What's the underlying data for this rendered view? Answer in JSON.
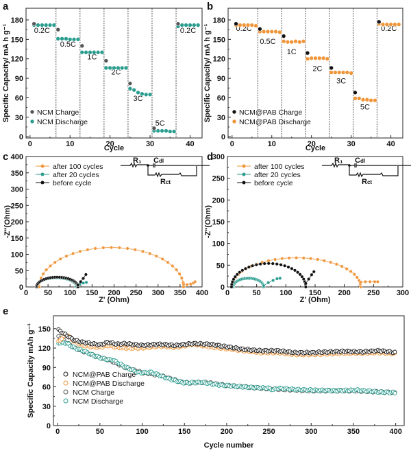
{
  "colors": {
    "charge": "#555555",
    "ncm_discharge": "#2a9d8f",
    "pab_discharge": "#f0963a",
    "pab_charge": "#111111",
    "before": "#111111"
  },
  "chart_data": [
    {
      "id": "a",
      "type": "scatter",
      "panel_label": "a",
      "xlabel": "Cycle",
      "ylabel": "Specific Capacity/ mA h g⁻¹",
      "xlim": [
        -1,
        43
      ],
      "ylim": [
        -2,
        198
      ],
      "xticks": [
        0,
        10,
        20,
        30,
        40
      ],
      "yticks": [
        0,
        30,
        60,
        90,
        120,
        150,
        180
      ],
      "dividers": [
        6.5,
        12.5,
        18.5,
        24.5,
        30.5,
        36.5
      ],
      "rate_labels": [
        {
          "text": "0.2C",
          "x": 3,
          "y": 160
        },
        {
          "text": "0.5C",
          "x": 9.5,
          "y": 139
        },
        {
          "text": "1C",
          "x": 15.5,
          "y": 119
        },
        {
          "text": "2C",
          "x": 21.5,
          "y": 96
        },
        {
          "text": "3C",
          "x": 27,
          "y": 55
        },
        {
          "text": "5C",
          "x": 32.5,
          "y": 17
        },
        {
          "text": "0.2C",
          "x": 39.5,
          "y": 160
        }
      ],
      "legend": [
        {
          "name": "NCM Charge",
          "color": "#555555"
        },
        {
          "name": "NCM Discharge",
          "color": "#2a9d8f"
        }
      ],
      "series": [
        {
          "name": "NCM Charge",
          "x": [
            1,
            7,
            13,
            19,
            25,
            31,
            37
          ],
          "y": [
            174,
            165,
            140,
            117,
            82,
            13,
            174
          ]
        },
        {
          "name": "NCM Discharge",
          "x": [
            1,
            2,
            3,
            4,
            5,
            6,
            7,
            8,
            9,
            10,
            11,
            12,
            13,
            14,
            15,
            16,
            17,
            18,
            19,
            20,
            21,
            22,
            23,
            24,
            25,
            26,
            27,
            28,
            29,
            30,
            31,
            32,
            33,
            34,
            35,
            36,
            37,
            38,
            39,
            40,
            41,
            42
          ],
          "y": [
            172,
            172,
            172,
            172,
            172,
            172,
            151,
            151,
            151,
            150,
            150,
            150,
            130,
            130,
            130,
            130,
            130,
            130,
            106,
            106,
            106,
            106,
            106,
            106,
            74,
            72,
            68,
            66,
            65,
            65,
            9,
            9,
            9,
            9,
            8,
            8,
            170,
            172,
            172,
            172,
            172,
            172
          ]
        }
      ]
    },
    {
      "id": "b",
      "type": "scatter",
      "panel_label": "b",
      "xlabel": "Cycle",
      "ylabel": "Specific Capacity/ mA h g⁻¹",
      "xlim": [
        -1,
        43
      ],
      "ylim": [
        -2,
        198
      ],
      "xticks": [
        0,
        10,
        20,
        30,
        40
      ],
      "yticks": [
        0,
        30,
        60,
        90,
        120,
        150,
        180
      ],
      "dividers": [
        6.5,
        12.5,
        18.5,
        24.5,
        30.5,
        36.5
      ],
      "rate_labels": [
        {
          "text": "0.2C",
          "x": 3,
          "y": 163
        },
        {
          "text": "0.5C",
          "x": 9,
          "y": 143
        },
        {
          "text": "1C",
          "x": 15,
          "y": 127
        },
        {
          "text": "2C",
          "x": 21.5,
          "y": 101
        },
        {
          "text": "3C",
          "x": 27.5,
          "y": 82
        },
        {
          "text": "5C",
          "x": 33.5,
          "y": 42
        },
        {
          "text": "0.2C",
          "x": 39.5,
          "y": 163
        }
      ],
      "legend": [
        {
          "name": "NCM@PAB Charge",
          "color": "#111111"
        },
        {
          "name": "NCM@PAB Discharge",
          "color": "#f0963a"
        }
      ],
      "series": [
        {
          "name": "NCM@PAB Charge",
          "x": [
            1,
            7,
            13,
            19,
            25,
            31,
            37
          ],
          "y": [
            174,
            166,
            155,
            129,
            106,
            68,
            177
          ]
        },
        {
          "name": "NCM@PAB Discharge",
          "x": [
            1,
            2,
            3,
            4,
            5,
            6,
            7,
            8,
            9,
            10,
            11,
            12,
            13,
            14,
            15,
            16,
            17,
            18,
            19,
            20,
            21,
            22,
            23,
            24,
            25,
            26,
            27,
            28,
            29,
            30,
            31,
            32,
            33,
            34,
            35,
            36,
            37,
            38,
            39,
            40,
            41,
            42
          ],
          "y": [
            172,
            172,
            172,
            172,
            172,
            171,
            162,
            162,
            162,
            162,
            162,
            161,
            147,
            146,
            146,
            147,
            146,
            147,
            120,
            121,
            121,
            121,
            121,
            120,
            99,
            99,
            99,
            99,
            99,
            98,
            59,
            59,
            57,
            57,
            56,
            56,
            174,
            173,
            173,
            173,
            173,
            173
          ]
        }
      ]
    },
    {
      "id": "c",
      "type": "line",
      "panel_label": "c",
      "xlabel": "Z' (Ohm)",
      "ylabel": "-Z''(Ohm)",
      "xlim": [
        0,
        400
      ],
      "ylim": [
        0,
        400
      ],
      "xticks": [
        0,
        50,
        100,
        150,
        200,
        250,
        300,
        350,
        400
      ],
      "yticks": [
        0,
        50,
        100,
        150,
        200,
        250,
        300,
        350,
        400
      ],
      "legend": [
        {
          "name": "after 100 cycles",
          "color": "#f0963a"
        },
        {
          "name": "after 20 cycles",
          "color": "#2a9d8f"
        },
        {
          "name": "before cycle",
          "color": "#111111"
        }
      ],
      "circuit": {
        "r1": "R₁",
        "cdl": "C",
        "cdl_sub": "dl",
        "rct": "R",
        "rct_sub": "ct"
      },
      "series": [
        {
          "name": "after 100 cycles",
          "semicircle": {
            "start": 30,
            "end": 358,
            "peak": 121
          },
          "tail": [
            [
              358,
              8
            ],
            [
              366,
              7
            ],
            [
              374,
              9
            ],
            [
              380,
              12
            ],
            [
              384,
              16
            ]
          ]
        },
        {
          "name": "after 20 cycles",
          "semicircle": {
            "start": 24,
            "end": 115,
            "peak": 28
          },
          "tail": [
            [
              115,
              3
            ],
            [
              122,
              8
            ],
            [
              130,
              12
            ],
            [
              137,
              14
            ]
          ]
        },
        {
          "name": "before cycle",
          "semicircle": {
            "start": 24,
            "end": 118,
            "peak": 30
          },
          "tail": [
            [
              118,
              6
            ],
            [
              124,
              16
            ],
            [
              130,
              26
            ],
            [
              136,
              38
            ]
          ]
        }
      ]
    },
    {
      "id": "d",
      "type": "line",
      "panel_label": "d",
      "xlabel": "Z' (Ohm)",
      "ylabel": "-Z''(Ohm)",
      "xlim": [
        0,
        300
      ],
      "ylim": [
        0,
        300
      ],
      "xticks": [
        0,
        50,
        100,
        150,
        200,
        250,
        300
      ],
      "yticks": [
        0,
        50,
        100,
        150,
        200,
        250,
        300
      ],
      "legend": [
        {
          "name": "after 100 cycles",
          "color": "#f0963a"
        },
        {
          "name": "after 20 cycles",
          "color": "#2a9d8f"
        },
        {
          "name": "before cycle",
          "color": "#111111"
        }
      ],
      "circuit": {
        "r1": "R₁",
        "cdl": "C",
        "cdl_sub": "dl",
        "rct": "R",
        "rct_sub": "ct"
      },
      "series": [
        {
          "name": "after 100 cycles",
          "semicircle": {
            "start": 8,
            "end": 228,
            "peak": 67
          },
          "tail": [
            [
              228,
              11
            ],
            [
              236,
              12
            ],
            [
              244,
              12
            ],
            [
              252,
              12
            ],
            [
              257,
              12
            ]
          ]
        },
        {
          "name": "after 20 cycles",
          "semicircle": {
            "start": 10,
            "end": 62,
            "peak": 20
          },
          "tail": [
            [
              62,
              3
            ],
            [
              70,
              10
            ],
            [
              78,
              15
            ],
            [
              85,
              19
            ],
            [
              90,
              20
            ]
          ]
        },
        {
          "name": "before cycle",
          "semicircle": {
            "start": 7,
            "end": 134,
            "peak": 54
          },
          "tail": [
            [
              134,
              8
            ],
            [
              139,
              18
            ],
            [
              144,
              28
            ],
            [
              148,
              35
            ]
          ]
        }
      ]
    },
    {
      "id": "e",
      "type": "scatter",
      "panel_label": "e",
      "xlabel": "Cycle number",
      "ylabel": "Specific Capacity mAh g⁻¹",
      "xlim": [
        -5,
        410
      ],
      "ylim": [
        0,
        170
      ],
      "xticks": [
        0,
        50,
        100,
        150,
        200,
        250,
        300,
        350,
        400
      ],
      "yticks": [
        0,
        30,
        60,
        90,
        120,
        150
      ],
      "legend": [
        {
          "name": "NCM@PAB Charge",
          "color": "#111111"
        },
        {
          "name": "NCM@PAB  Discharge",
          "color": "#f0963a"
        },
        {
          "name": "NCM Charge",
          "color": "#555555"
        },
        {
          "name": "NCM Discharge",
          "color": "#2a9d8f"
        }
      ],
      "series": [
        {
          "name": "NCM@PAB Charge",
          "x": [
            1,
            10,
            20,
            30,
            40,
            50,
            60,
            70,
            80,
            100,
            120,
            140,
            160,
            180,
            200,
            220,
            240,
            260,
            280,
            300,
            320,
            340,
            360,
            380,
            400
          ],
          "y": [
            148,
            140,
            132,
            129,
            127,
            125,
            129,
            126,
            127,
            124,
            126,
            124,
            127,
            126,
            122,
            118,
            116,
            116,
            113,
            113,
            114,
            115,
            114,
            116,
            113
          ]
        },
        {
          "name": "NCM@PAB  Discharge",
          "x": [
            1,
            10,
            20,
            30,
            40,
            50,
            60,
            70,
            80,
            100,
            120,
            140,
            160,
            180,
            200,
            220,
            240,
            260,
            280,
            300,
            320,
            340,
            360,
            380,
            400
          ],
          "y": [
            130,
            142,
            130,
            124,
            122,
            121,
            124,
            121,
            120,
            120,
            123,
            121,
            126,
            122,
            119,
            116,
            113,
            113,
            110,
            110,
            111,
            112,
            112,
            113,
            111
          ]
        },
        {
          "name": "NCM Charge",
          "x": [
            1,
            10,
            20,
            30,
            40,
            50,
            60,
            80,
            100,
            120,
            150,
            175,
            200,
            250,
            300,
            350,
            400
          ],
          "y": [
            138,
            129,
            120,
            115,
            110,
            105,
            102,
            90,
            82,
            78,
            66,
            67,
            62,
            57,
            54,
            54,
            51
          ]
        },
        {
          "name": "NCM Discharge",
          "x": [
            1,
            10,
            20,
            30,
            40,
            50,
            60,
            65,
            80,
            95,
            105,
            110,
            130,
            150,
            170,
            190,
            210,
            230,
            250,
            255,
            260,
            280,
            300,
            330,
            355,
            380,
            400
          ],
          "y": [
            128,
            128,
            120,
            116,
            110,
            105,
            102,
            102,
            91,
            82,
            82,
            83,
            73,
            66,
            67,
            63,
            61,
            59,
            58,
            55,
            58,
            56,
            55,
            54,
            55,
            52,
            51
          ]
        }
      ]
    }
  ]
}
